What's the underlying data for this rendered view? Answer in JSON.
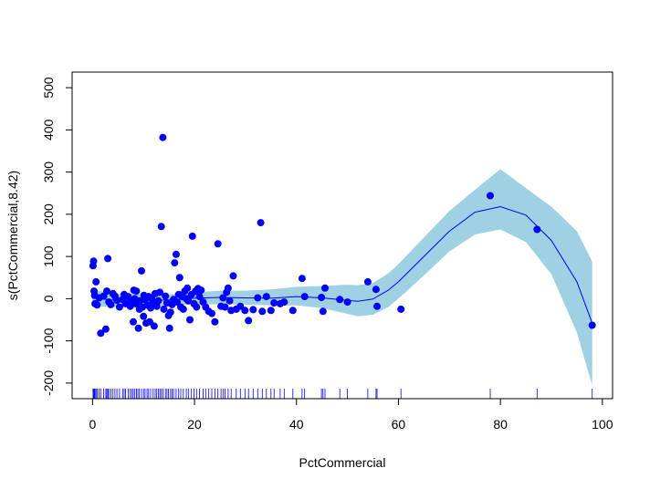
{
  "chart_data": {
    "type": "scatter",
    "title": "",
    "xlabel": "PctCommercial",
    "ylabel": "s(PctCommercial,8.42)",
    "xlim": [
      -4,
      102
    ],
    "ylim": [
      -237,
      537
    ],
    "x_ticks": [
      0,
      20,
      40,
      60,
      80,
      100
    ],
    "y_ticks": [
      -200,
      -100,
      0,
      100,
      200,
      300,
      400,
      500
    ],
    "grid": false,
    "legend": "none",
    "colors": {
      "points": "#0000ff",
      "smooth_line": "#0000ff",
      "confidence_band": "#9fd1e3",
      "rug": "#0000ff",
      "axis": "#000000"
    },
    "series": [
      {
        "kind": "partial_residuals",
        "points": [
          [
            0.1,
            78
          ],
          [
            0.2,
            89
          ],
          [
            0.3,
            18
          ],
          [
            0.4,
            8
          ],
          [
            0.5,
            -12
          ],
          [
            0.7,
            40
          ],
          [
            0.9,
            -15
          ],
          [
            1.3,
            2
          ],
          [
            1.6,
            -82
          ],
          [
            2.2,
            6
          ],
          [
            2.6,
            -72
          ],
          [
            2.8,
            18
          ],
          [
            3.0,
            95
          ],
          [
            3.2,
            -8
          ],
          [
            3.6,
            -14
          ],
          [
            4.0,
            12
          ],
          [
            4.4,
            6
          ],
          [
            4.8,
            -4
          ],
          [
            5.3,
            -20
          ],
          [
            5.9,
            -2
          ],
          [
            6.2,
            10
          ],
          [
            6.5,
            -12
          ],
          [
            7.0,
            5
          ],
          [
            7.4,
            -18
          ],
          [
            7.7,
            -4
          ],
          [
            8.0,
            -55
          ],
          [
            8.1,
            20
          ],
          [
            8.3,
            0
          ],
          [
            8.5,
            -12
          ],
          [
            8.6,
            18
          ],
          [
            8.9,
            -8
          ],
          [
            9.0,
            -70
          ],
          [
            9.2,
            -25
          ],
          [
            9.3,
            -5
          ],
          [
            9.6,
            66
          ],
          [
            9.8,
            -20
          ],
          [
            10.0,
            -42
          ],
          [
            10.1,
            8
          ],
          [
            10.3,
            -2
          ],
          [
            10.5,
            -58
          ],
          [
            10.7,
            -15
          ],
          [
            11.0,
            5
          ],
          [
            11.2,
            -55
          ],
          [
            11.4,
            -22
          ],
          [
            11.6,
            0
          ],
          [
            11.9,
            -8
          ],
          [
            12.1,
            -65
          ],
          [
            12.3,
            12
          ],
          [
            12.6,
            -18
          ],
          [
            12.9,
            -5
          ],
          [
            13.2,
            15
          ],
          [
            13.5,
            171
          ],
          [
            13.8,
            382
          ],
          [
            14.0,
            -25
          ],
          [
            14.3,
            6
          ],
          [
            14.6,
            -10
          ],
          [
            14.9,
            -40
          ],
          [
            15.1,
            -70
          ],
          [
            15.3,
            -32
          ],
          [
            15.6,
            -14
          ],
          [
            15.9,
            -2
          ],
          [
            16.1,
            85
          ],
          [
            16.4,
            105
          ],
          [
            16.6,
            -8
          ],
          [
            16.9,
            10
          ],
          [
            17.1,
            50
          ],
          [
            17.3,
            -20
          ],
          [
            17.6,
            5
          ],
          [
            17.8,
            -25
          ],
          [
            18.1,
            18
          ],
          [
            18.4,
            0
          ],
          [
            18.6,
            25
          ],
          [
            18.8,
            -5
          ],
          [
            19.1,
            -50
          ],
          [
            19.4,
            10
          ],
          [
            19.6,
            148
          ],
          [
            19.9,
            -12
          ],
          [
            20.2,
            18
          ],
          [
            20.4,
            -20
          ],
          [
            20.7,
            24
          ],
          [
            21.0,
            5
          ],
          [
            21.3,
            20
          ],
          [
            21.7,
            -8
          ],
          [
            22.2,
            -20
          ],
          [
            22.8,
            -30
          ],
          [
            23.4,
            -35
          ],
          [
            24.0,
            -55
          ],
          [
            24.6,
            130
          ],
          [
            25.2,
            -18
          ],
          [
            25.6,
            2
          ],
          [
            26.0,
            -20
          ],
          [
            26.3,
            15
          ],
          [
            26.6,
            25
          ],
          [
            26.9,
            -5
          ],
          [
            27.2,
            -28
          ],
          [
            27.6,
            54
          ],
          [
            28.2,
            -25
          ],
          [
            29.0,
            -18
          ],
          [
            29.9,
            -28
          ],
          [
            30.6,
            -52
          ],
          [
            31.5,
            -26
          ],
          [
            32.4,
            2
          ],
          [
            33.0,
            180
          ],
          [
            33.3,
            -30
          ],
          [
            34.1,
            5
          ],
          [
            35.0,
            -28
          ],
          [
            35.6,
            -10
          ],
          [
            36.8,
            -12
          ],
          [
            37.6,
            -8
          ],
          [
            39.3,
            -28
          ],
          [
            41.1,
            48
          ],
          [
            41.6,
            5
          ],
          [
            44.9,
            3
          ],
          [
            45.2,
            -30
          ],
          [
            45.6,
            25
          ],
          [
            48.5,
            -2
          ],
          [
            50.0,
            -8
          ],
          [
            54.0,
            40
          ],
          [
            55.6,
            22
          ],
          [
            55.8,
            -18
          ],
          [
            60.5,
            -25
          ],
          [
            78.0,
            244
          ],
          [
            87.2,
            164
          ],
          [
            98.0,
            -63
          ]
        ]
      },
      {
        "kind": "smooth_fit",
        "x": [
          0,
          5,
          10,
          15,
          20,
          25,
          30,
          35,
          40,
          45,
          50,
          52,
          55,
          58,
          60,
          65,
          70,
          75,
          80,
          85,
          90,
          95,
          98
        ],
        "y": [
          1,
          -4,
          -4,
          -3,
          1,
          3,
          2,
          1,
          5,
          2,
          -4,
          -6,
          -1,
          20,
          40,
          100,
          160,
          205,
          218,
          198,
          138,
          40,
          -58
        ],
        "lower": [
          -18,
          -20,
          -19,
          -16,
          -14,
          -13,
          -14,
          -16,
          -16,
          -22,
          -36,
          -42,
          -38,
          -20,
          0,
          55,
          112,
          152,
          164,
          134,
          58,
          -80,
          -205
        ],
        "upper": [
          20,
          12,
          11,
          10,
          15,
          19,
          19,
          22,
          28,
          30,
          33,
          32,
          37,
          60,
          82,
          145,
          208,
          258,
          307,
          262,
          218,
          160,
          88
        ]
      }
    ],
    "rug_x": [
      0.1,
      0.2,
      0.3,
      0.4,
      0.5,
      0.7,
      0.9,
      1.3,
      1.6,
      2.2,
      2.6,
      2.8,
      3.0,
      3.2,
      3.6,
      4.0,
      4.4,
      4.8,
      5.3,
      5.9,
      6.2,
      6.5,
      7.0,
      7.4,
      7.7,
      8.0,
      8.3,
      8.6,
      8.9,
      9.2,
      9.6,
      10.0,
      10.3,
      10.7,
      11.0,
      11.4,
      11.9,
      12.3,
      12.6,
      12.9,
      13.2,
      13.5,
      13.8,
      14.3,
      14.6,
      14.9,
      15.3,
      15.6,
      15.9,
      16.4,
      16.9,
      17.3,
      17.8,
      18.4,
      18.8,
      19.4,
      19.9,
      20.4,
      21.0,
      21.7,
      22.2,
      22.8,
      23.4,
      24.0,
      24.6,
      25.2,
      25.6,
      26.0,
      26.6,
      27.2,
      28.2,
      29.0,
      29.9,
      30.6,
      31.5,
      32.4,
      33.3,
      34.1,
      35.0,
      35.6,
      36.8,
      37.6,
      39.3,
      41.1,
      41.6,
      44.9,
      45.2,
      45.6,
      48.5,
      50.0,
      54.0,
      55.6,
      55.8,
      60.5,
      78.0,
      87.2,
      98.0
    ]
  }
}
